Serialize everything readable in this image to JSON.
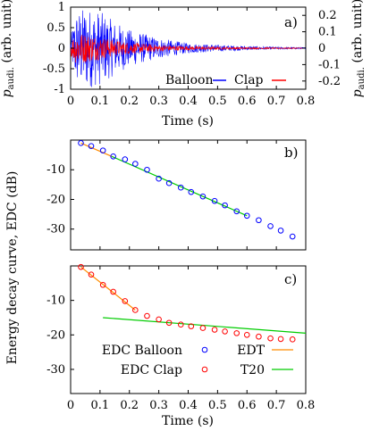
{
  "chart_data": [
    {
      "id": "a",
      "type": "line",
      "panel_label": "a)",
      "xlabel": "Time (s)",
      "ylabel_left": "p_audi. (arb. unit)",
      "ylabel_right": "p_audi. (arb. unit)",
      "xlim": [
        0,
        0.8
      ],
      "ylim_left": [
        -1,
        1
      ],
      "ylim_right": [
        -0.25,
        0.25
      ],
      "x_ticks": [
        "0",
        "0.1",
        "0.2",
        "0.3",
        "0.4",
        "0.5",
        "0.6",
        "0.7",
        "0.8"
      ],
      "y_ticks_left": [
        "-1",
        "-0.5",
        "0",
        "0.5",
        "1"
      ],
      "y_ticks_right": [
        "-0.2",
        "-0.1",
        "0",
        "0.1",
        "0.2"
      ],
      "legend_position": "bottom-right",
      "series": [
        {
          "name": "Balloon",
          "axis": "left",
          "color": "#0000ff",
          "envelope": {
            "x": [
              0,
              0.02,
              0.05,
              0.1,
              0.15,
              0.2,
              0.3,
              0.4,
              0.5,
              0.6,
              0.7,
              0.8
            ],
            "amplitude": [
              0.3,
              0.9,
              1.0,
              0.9,
              0.65,
              0.45,
              0.25,
              0.12,
              0.08,
              0.05,
              0.03,
              0.02
            ]
          }
        },
        {
          "name": "Clap",
          "axis": "right",
          "color": "#ff0000",
          "envelope": {
            "x": [
              0,
              0.02,
              0.05,
              0.1,
              0.15,
              0.2,
              0.3,
              0.4,
              0.5,
              0.6,
              0.7,
              0.8
            ],
            "amplitude": [
              0.05,
              0.1,
              0.09,
              0.07,
              0.05,
              0.035,
              0.02,
              0.012,
              0.008,
              0.005,
              0.003,
              0.002
            ]
          }
        }
      ]
    },
    {
      "id": "b",
      "type": "scatter",
      "panel_label": "b)",
      "xlim": [
        0,
        0.8
      ],
      "ylim": [
        -37,
        0
      ],
      "y_ticks": [
        "-10",
        "-20",
        "-30"
      ],
      "series": [
        {
          "name": "EDC Balloon",
          "marker": "circle",
          "color": "#0000ff",
          "x": [
            0.035,
            0.07,
            0.11,
            0.145,
            0.185,
            0.22,
            0.26,
            0.3,
            0.335,
            0.375,
            0.41,
            0.45,
            0.49,
            0.525,
            0.565,
            0.6,
            0.64,
            0.68,
            0.715,
            0.755
          ],
          "y": [
            -1,
            -2,
            -3.5,
            -5.5,
            -6.5,
            -8,
            -10,
            -13,
            -14.5,
            -16,
            -17.5,
            -19,
            -20.5,
            -22,
            -24,
            -25.5,
            -27,
            -29,
            -30.5,
            -32.5
          ]
        },
        {
          "name": "EDT",
          "type": "line",
          "color": "#ff8c00",
          "x": [
            0.035,
            0.14
          ],
          "y": [
            -1,
            -5.5
          ]
        },
        {
          "name": "T20",
          "type": "line",
          "color": "#00cc00",
          "x": [
            0.14,
            0.6
          ],
          "y": [
            -5.5,
            -25.5
          ]
        }
      ]
    },
    {
      "id": "c",
      "type": "scatter",
      "panel_label": "c)",
      "xlabel": "Time (s)",
      "xlim": [
        0,
        0.8
      ],
      "ylim": [
        -37,
        0
      ],
      "x_ticks": [
        "0",
        "0.1",
        "0.2",
        "0.3",
        "0.4",
        "0.5",
        "0.6",
        "0.7",
        "0.8"
      ],
      "y_ticks": [
        "-10",
        "-20",
        "-30"
      ],
      "legend_position": "bottom-left",
      "series": [
        {
          "name": "EDC Balloon",
          "marker": "circle",
          "color": "#0000ff",
          "legend_only": true,
          "x": [],
          "y": []
        },
        {
          "name": "EDC Clap",
          "marker": "circle",
          "color": "#ff0000",
          "x": [
            0.035,
            0.07,
            0.11,
            0.145,
            0.185,
            0.22,
            0.26,
            0.3,
            0.335,
            0.375,
            0.41,
            0.45,
            0.49,
            0.525,
            0.565,
            0.6,
            0.64,
            0.68,
            0.715,
            0.755
          ],
          "y": [
            -0.3,
            -2.5,
            -5.5,
            -7.5,
            -10.2,
            -12.8,
            -14.5,
            -15.5,
            -16.5,
            -17,
            -17.5,
            -18,
            -18.5,
            -19,
            -19.5,
            -20,
            -20.5,
            -21,
            -21.2,
            -21.3
          ]
        },
        {
          "name": "EDT",
          "type": "line",
          "color": "#ff8c00",
          "x": [
            0.035,
            0.22
          ],
          "y": [
            -0.3,
            -12.8
          ]
        },
        {
          "name": "T20",
          "type": "line",
          "color": "#00cc00",
          "x": [
            0.11,
            0.8
          ],
          "y": [
            -15,
            -19.5
          ]
        }
      ]
    }
  ],
  "shared_ylabel": "Energy decay curve, EDC (dB)"
}
